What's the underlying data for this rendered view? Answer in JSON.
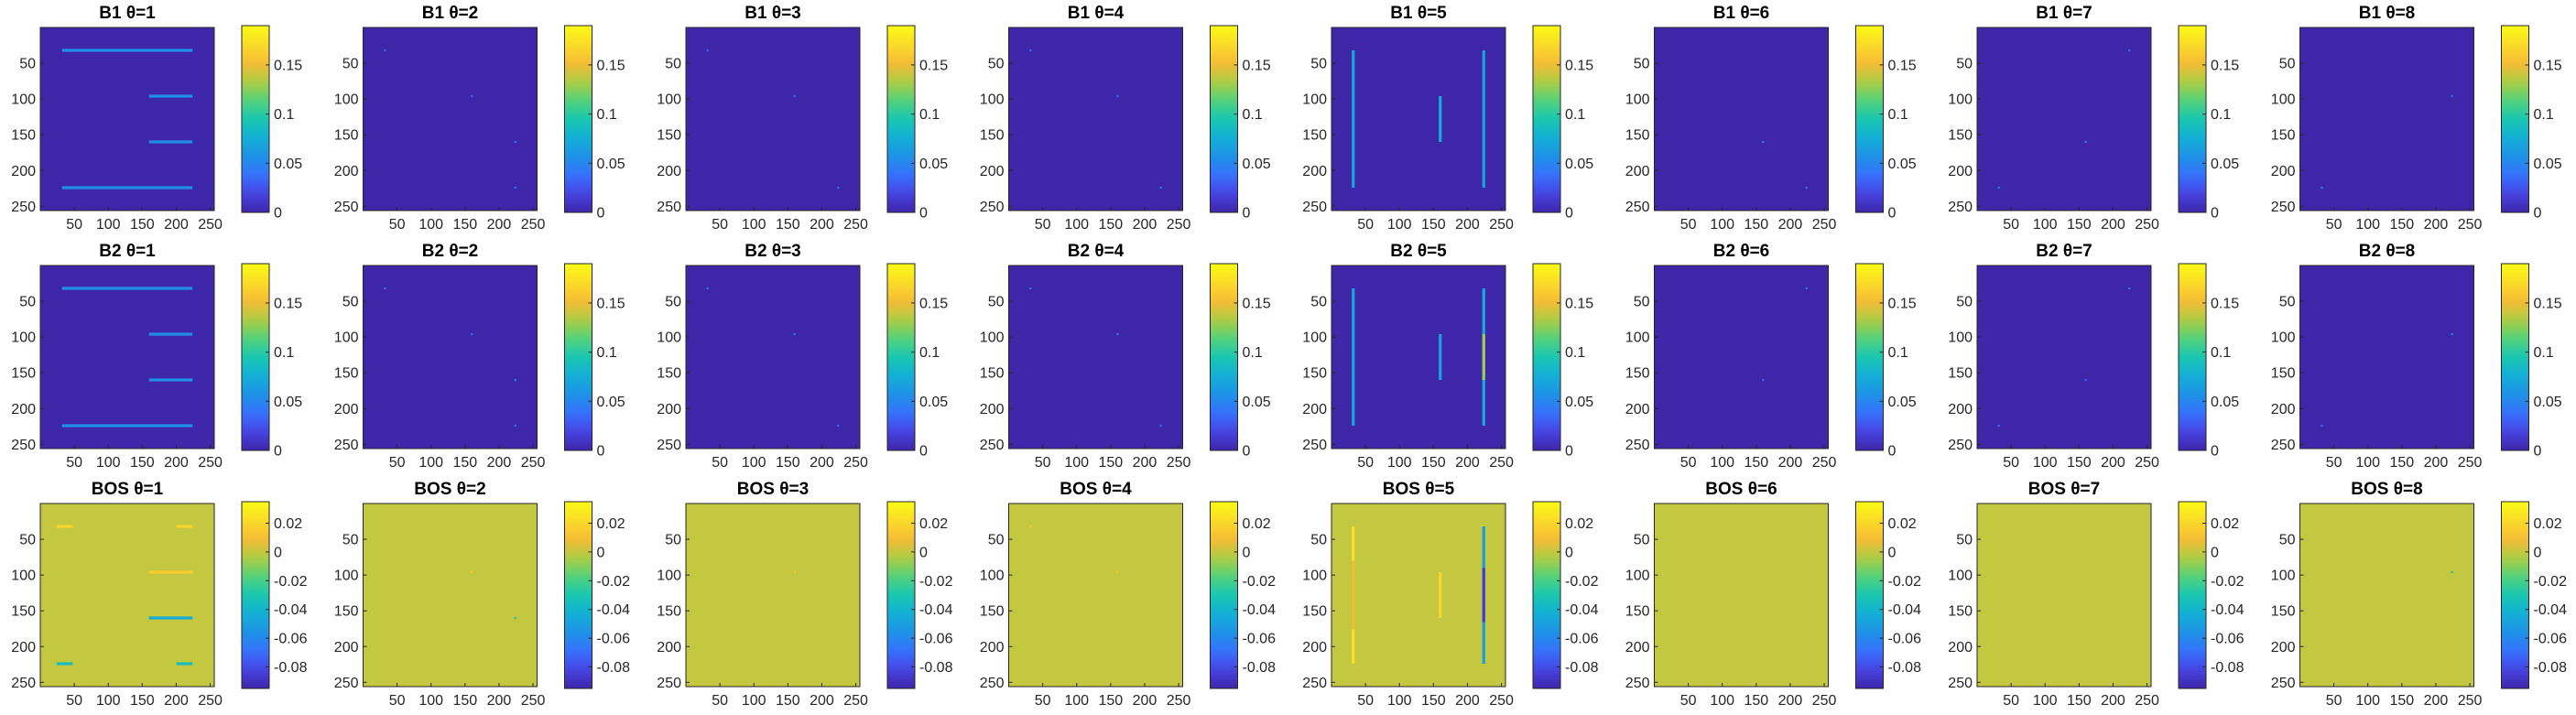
{
  "chart_data": {
    "type": "heatmap",
    "layout": {
      "rows": 3,
      "cols": 8
    },
    "colormap": "parula",
    "colormap_stops": [
      "#3e26a8",
      "#4743e3",
      "#3671fc",
      "#1e92e6",
      "#13afd6",
      "#1ac7b0",
      "#55d27a",
      "#aecc44",
      "#f6bc36",
      "#fbdc27",
      "#f9fb15"
    ],
    "x_ticks": [
      "50",
      "100",
      "150",
      "200",
      "250"
    ],
    "y_ticks": [
      "50",
      "100",
      "150",
      "200",
      "250"
    ],
    "xlim": [
      1,
      256
    ],
    "ylim": [
      1,
      256
    ],
    "rows": [
      {
        "prefix": "B1",
        "clim": [
          0,
          0.19
        ],
        "colorbar_ticks": [
          0,
          0.05,
          0.1,
          0.15
        ],
        "colorbar_tick_labels": [
          "0",
          "0.05",
          "0.1",
          "0.15"
        ],
        "background": 0,
        "panels": [
          {
            "title": "B1 θ=1",
            "features": [
              {
                "kind": "h",
                "y": 32,
                "x0": 32,
                "x1": 224,
                "value": 0.055
              },
              {
                "kind": "h",
                "y": 96,
                "x0": 160,
                "x1": 224,
                "value": 0.055
              },
              {
                "kind": "h",
                "y": 160,
                "x0": 160,
                "x1": 224,
                "value": 0.055
              },
              {
                "kind": "h",
                "y": 224,
                "x0": 32,
                "x1": 224,
                "value": 0.055
              }
            ]
          },
          {
            "title": "B1 θ=2",
            "features": [
              {
                "kind": "p",
                "x": 32,
                "y": 32,
                "value": 0.04
              },
              {
                "kind": "p",
                "x": 160,
                "y": 96,
                "value": 0.04
              },
              {
                "kind": "p",
                "x": 224,
                "y": 160,
                "value": 0.04
              },
              {
                "kind": "p",
                "x": 224,
                "y": 224,
                "value": 0.04
              }
            ]
          },
          {
            "title": "B1 θ=3",
            "features": [
              {
                "kind": "p",
                "x": 32,
                "y": 32,
                "value": 0.04
              },
              {
                "kind": "p",
                "x": 160,
                "y": 96,
                "value": 0.04
              },
              {
                "kind": "p",
                "x": 224,
                "y": 224,
                "value": 0.04
              }
            ]
          },
          {
            "title": "B1 θ=4",
            "features": [
              {
                "kind": "p",
                "x": 32,
                "y": 32,
                "value": 0.04
              },
              {
                "kind": "p",
                "x": 160,
                "y": 96,
                "value": 0.04
              },
              {
                "kind": "p",
                "x": 224,
                "y": 224,
                "value": 0.04
              }
            ]
          },
          {
            "title": "B1 θ=5",
            "features": [
              {
                "kind": "v",
                "x": 32,
                "y0": 32,
                "y1": 224,
                "value": 0.07
              },
              {
                "kind": "v",
                "x": 160,
                "y0": 96,
                "y1": 160,
                "value": 0.075
              },
              {
                "kind": "v",
                "x": 224,
                "y0": 32,
                "y1": 224,
                "value": 0.07
              }
            ]
          },
          {
            "title": "B1 θ=6",
            "features": [
              {
                "kind": "p",
                "x": 160,
                "y": 160,
                "value": 0.04
              },
              {
                "kind": "p",
                "x": 224,
                "y": 224,
                "value": 0.04
              }
            ]
          },
          {
            "title": "B1 θ=7",
            "features": [
              {
                "kind": "p",
                "x": 160,
                "y": 160,
                "value": 0.04
              },
              {
                "kind": "p",
                "x": 224,
                "y": 32,
                "value": 0.04
              },
              {
                "kind": "p",
                "x": 32,
                "y": 224,
                "value": 0.04
              }
            ]
          },
          {
            "title": "B1 θ=8",
            "features": [
              {
                "kind": "p",
                "x": 224,
                "y": 96,
                "value": 0.04
              },
              {
                "kind": "p",
                "x": 32,
                "y": 224,
                "value": 0.04
              }
            ]
          }
        ]
      },
      {
        "prefix": "B2",
        "clim": [
          0,
          0.19
        ],
        "colorbar_ticks": [
          0,
          0.05,
          0.1,
          0.15
        ],
        "colorbar_tick_labels": [
          "0",
          "0.05",
          "0.1",
          "0.15"
        ],
        "background": 0,
        "panels": [
          {
            "title": "B2 θ=1",
            "features": [
              {
                "kind": "h",
                "y": 32,
                "x0": 32,
                "x1": 224,
                "value": 0.055
              },
              {
                "kind": "h",
                "y": 96,
                "x0": 160,
                "x1": 224,
                "value": 0.055
              },
              {
                "kind": "h",
                "y": 160,
                "x0": 160,
                "x1": 224,
                "value": 0.055
              },
              {
                "kind": "h",
                "y": 224,
                "x0": 32,
                "x1": 224,
                "value": 0.055
              }
            ]
          },
          {
            "title": "B2 θ=2",
            "features": [
              {
                "kind": "p",
                "x": 32,
                "y": 32,
                "value": 0.04
              },
              {
                "kind": "p",
                "x": 160,
                "y": 96,
                "value": 0.04
              },
              {
                "kind": "p",
                "x": 224,
                "y": 160,
                "value": 0.05
              },
              {
                "kind": "p",
                "x": 224,
                "y": 224,
                "value": 0.04
              }
            ]
          },
          {
            "title": "B2 θ=3",
            "features": [
              {
                "kind": "p",
                "x": 32,
                "y": 32,
                "value": 0.04
              },
              {
                "kind": "p",
                "x": 160,
                "y": 96,
                "value": 0.04
              },
              {
                "kind": "p",
                "x": 224,
                "y": 224,
                "value": 0.04
              }
            ]
          },
          {
            "title": "B2 θ=4",
            "features": [
              {
                "kind": "p",
                "x": 32,
                "y": 32,
                "value": 0.04
              },
              {
                "kind": "p",
                "x": 160,
                "y": 96,
                "value": 0.04
              },
              {
                "kind": "p",
                "x": 224,
                "y": 224,
                "value": 0.04
              }
            ]
          },
          {
            "title": "B2 θ=5",
            "features": [
              {
                "kind": "v",
                "x": 32,
                "y0": 32,
                "y1": 224,
                "value": 0.07
              },
              {
                "kind": "v",
                "x": 160,
                "y0": 96,
                "y1": 160,
                "value": 0.07
              },
              {
                "kind": "v",
                "x": 224,
                "y0": 32,
                "y1": 224,
                "value": 0.075
              },
              {
                "kind": "v",
                "x": 224,
                "y0": 96,
                "y1": 160,
                "value": 0.13
              }
            ]
          },
          {
            "title": "B2 θ=6",
            "features": [
              {
                "kind": "p",
                "x": 160,
                "y": 160,
                "value": 0.04
              },
              {
                "kind": "p",
                "x": 224,
                "y": 32,
                "value": 0.04
              }
            ]
          },
          {
            "title": "B2 θ=7",
            "features": [
              {
                "kind": "p",
                "x": 160,
                "y": 160,
                "value": 0.04
              },
              {
                "kind": "p",
                "x": 224,
                "y": 32,
                "value": 0.04
              },
              {
                "kind": "p",
                "x": 32,
                "y": 224,
                "value": 0.04
              }
            ]
          },
          {
            "title": "B2 θ=8",
            "features": [
              {
                "kind": "p",
                "x": 224,
                "y": 96,
                "value": 0.04
              },
              {
                "kind": "p",
                "x": 32,
                "y": 224,
                "value": 0.04
              }
            ]
          }
        ]
      },
      {
        "prefix": "BOS",
        "clim": [
          -0.095,
          0.035
        ],
        "colorbar_ticks": [
          0.02,
          0,
          -0.02,
          -0.04,
          -0.06,
          -0.08
        ],
        "colorbar_tick_labels": [
          "0.02",
          "0",
          "-0.02",
          "-0.04",
          "-0.06",
          "-0.08"
        ],
        "background": 0,
        "panels": [
          {
            "title": "BOS θ=1",
            "features": [
              {
                "kind": "h",
                "y": 32,
                "x0": 24,
                "x1": 48,
                "value": 0.018
              },
              {
                "kind": "h",
                "y": 32,
                "x0": 200,
                "x1": 224,
                "value": 0.018
              },
              {
                "kind": "h",
                "y": 96,
                "x0": 160,
                "x1": 224,
                "value": 0.016
              },
              {
                "kind": "h",
                "y": 160,
                "x0": 160,
                "x1": 224,
                "value": -0.045
              },
              {
                "kind": "h",
                "y": 224,
                "x0": 24,
                "x1": 48,
                "value": -0.035
              },
              {
                "kind": "h",
                "y": 224,
                "x0": 200,
                "x1": 224,
                "value": -0.035
              }
            ]
          },
          {
            "title": "BOS θ=2",
            "features": [
              {
                "kind": "p",
                "x": 160,
                "y": 96,
                "value": 0.015
              },
              {
                "kind": "p",
                "x": 224,
                "y": 160,
                "value": -0.03
              }
            ]
          },
          {
            "title": "BOS θ=3",
            "features": [
              {
                "kind": "p",
                "x": 160,
                "y": 96,
                "value": 0.015
              }
            ]
          },
          {
            "title": "BOS θ=4",
            "features": [
              {
                "kind": "p",
                "x": 32,
                "y": 32,
                "value": 0.012
              },
              {
                "kind": "p",
                "x": 160,
                "y": 96,
                "value": 0.015
              }
            ]
          },
          {
            "title": "BOS θ=5",
            "features": [
              {
                "kind": "v",
                "x": 32,
                "y0": 32,
                "y1": 80,
                "value": 0.024
              },
              {
                "kind": "v",
                "x": 32,
                "y0": 80,
                "y1": 176,
                "value": 0.008
              },
              {
                "kind": "v",
                "x": 32,
                "y0": 176,
                "y1": 224,
                "value": 0.024
              },
              {
                "kind": "v",
                "x": 160,
                "y0": 96,
                "y1": 160,
                "value": 0.02
              },
              {
                "kind": "v",
                "x": 224,
                "y0": 32,
                "y1": 224,
                "value": -0.05
              },
              {
                "kind": "v",
                "x": 224,
                "y0": 90,
                "y1": 166,
                "value": -0.085
              }
            ]
          },
          {
            "title": "BOS θ=6",
            "features": []
          },
          {
            "title": "BOS θ=7",
            "features": []
          },
          {
            "title": "BOS θ=8",
            "features": [
              {
                "kind": "p",
                "x": 224,
                "y": 96,
                "value": -0.035
              }
            ]
          }
        ]
      }
    ]
  }
}
